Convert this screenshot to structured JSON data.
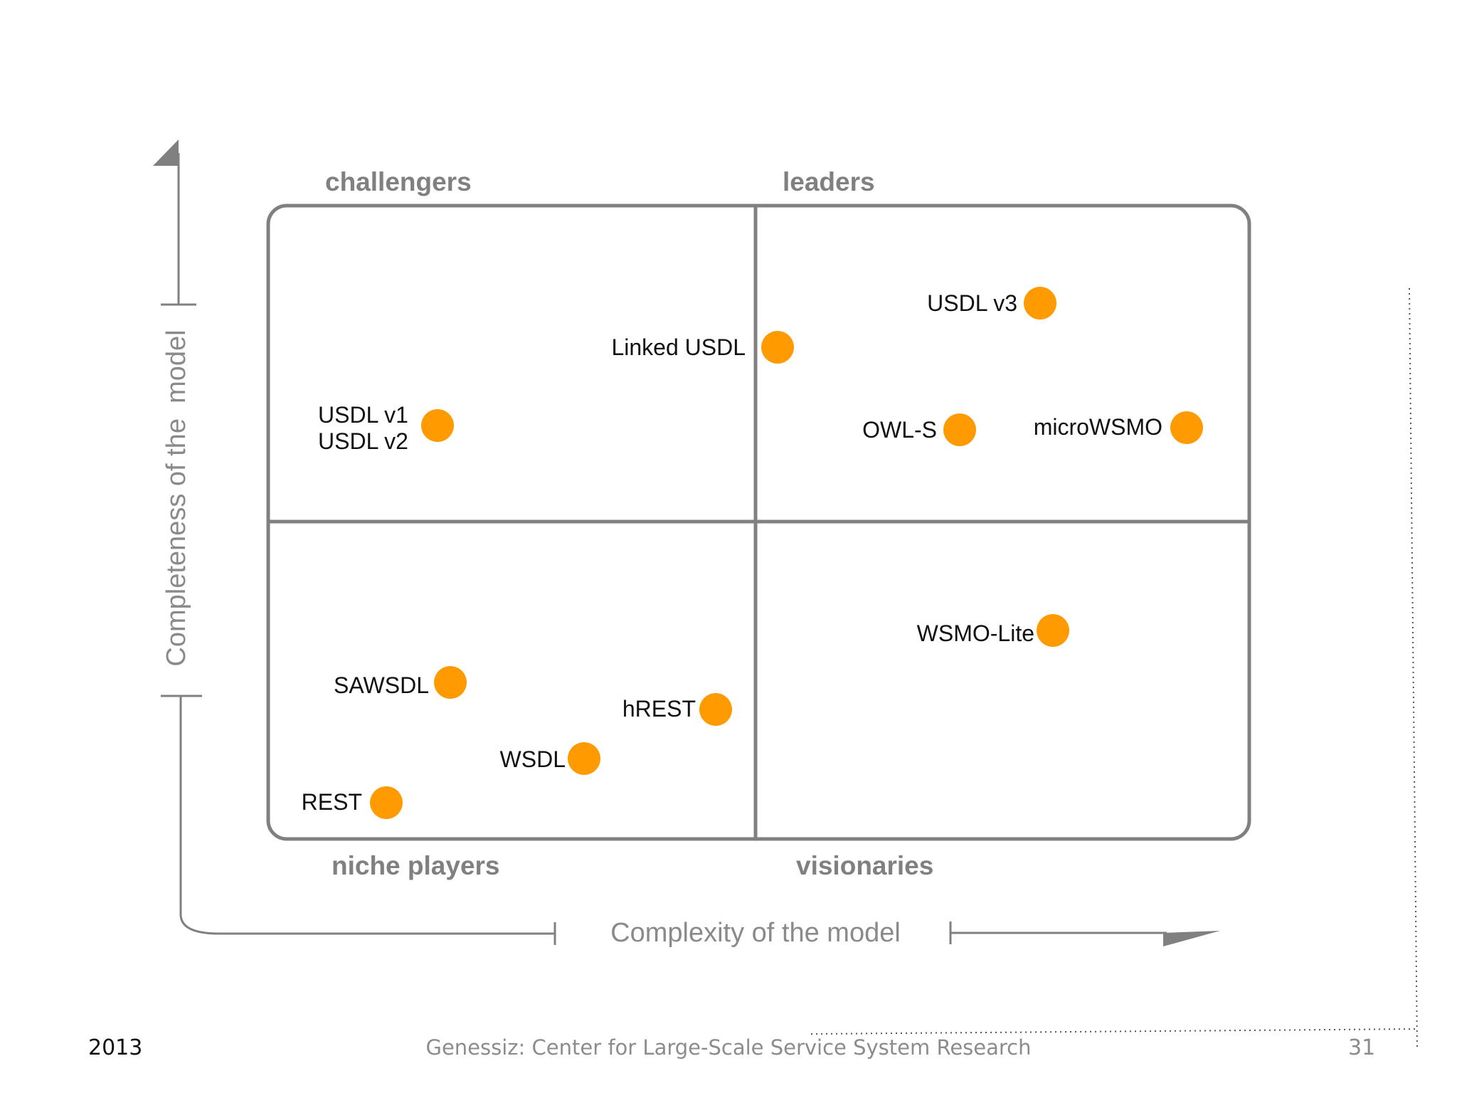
{
  "quadrants": {
    "top_left": "challengers",
    "top_right": "leaders",
    "bottom_left": "niche players",
    "bottom_right": "visionaries"
  },
  "axes": {
    "y_label": "Completeness of the  model",
    "x_label": "Complexity of the model"
  },
  "points": [
    {
      "label_lines": [
        "USDL v3"
      ]
    },
    {
      "label_lines": [
        "Linked USDL"
      ]
    },
    {
      "label_lines": [
        "USDL v1",
        "USDL v2"
      ]
    },
    {
      "label_lines": [
        "OWL-S"
      ]
    },
    {
      "label_lines": [
        "microWSMO"
      ]
    },
    {
      "label_lines": [
        "WSMO-Lite"
      ]
    },
    {
      "label_lines": [
        "SAWSDL"
      ]
    },
    {
      "label_lines": [
        "hREST"
      ]
    },
    {
      "label_lines": [
        "WSDL"
      ]
    },
    {
      "label_lines": [
        "REST"
      ]
    }
  ],
  "colors": {
    "dot": "#ff9a00",
    "frame": "#808080",
    "axis": "#808080"
  },
  "footer": {
    "year": "2013",
    "center": "Genessiz: Center for Large-Scale Service System Research",
    "page": "31"
  }
}
